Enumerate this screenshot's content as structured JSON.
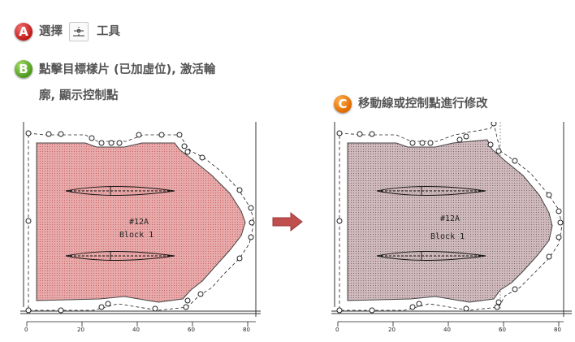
{
  "steps": {
    "a": {
      "badge": "A",
      "text_before": "選擇",
      "text_after": "工具",
      "tool_icon": "select-point-tool-icon"
    },
    "b": {
      "badge": "B",
      "line1": "點擊目標樣片 (已加虛位), 激活輪",
      "line2": "廓, 顯示控制點"
    },
    "c": {
      "badge": "C",
      "text": "移動線或控制點進行修改"
    }
  },
  "panels": {
    "left": {
      "title": "#12A",
      "subtitle": "Block 1",
      "fill_color": "#d98a8a",
      "ruler_labels": [
        "0",
        "20",
        "40",
        "60",
        "80"
      ]
    },
    "right": {
      "title": "#12A",
      "subtitle": "Block 1",
      "fill_color": "#b49aa0",
      "ruler_labels": [
        "0",
        "20",
        "40",
        "60",
        "80"
      ]
    }
  },
  "colors": {
    "badge_a": "#c21818",
    "badge_b": "#4c9a1c",
    "badge_c": "#e06a00",
    "arrow": "#c0504d",
    "text": "#555555"
  }
}
